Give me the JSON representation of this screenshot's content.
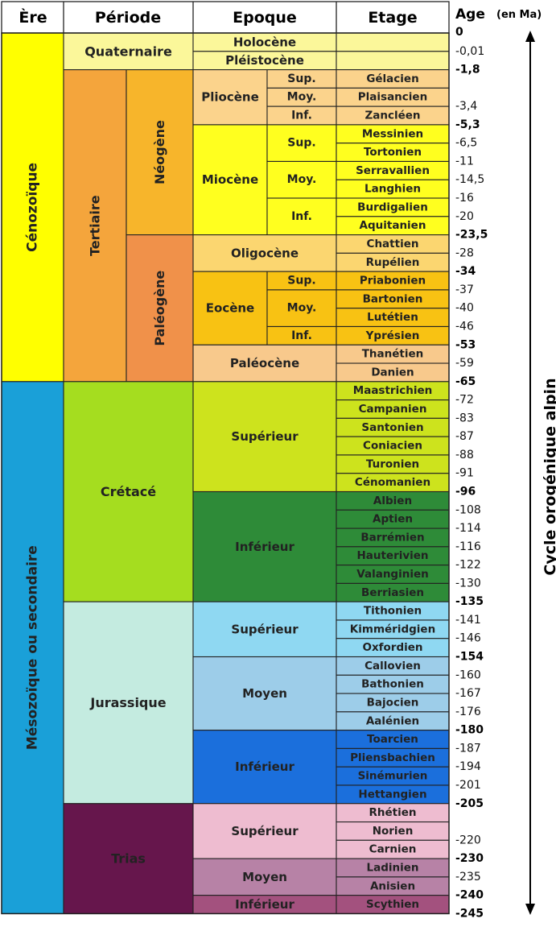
{
  "headers": {
    "ere": "Ère",
    "periode": "Période",
    "epoque": "Epoque",
    "etage": "Etage",
    "age": "Age",
    "age_unit": "(en Ma)"
  },
  "cycle_label": "Cycle orogénique alpin",
  "colors": {
    "cenozoique": "#ffff00",
    "mesozoique": "#1aa0d8",
    "tertiaire": "#f4a53c",
    "neogene": "#f7b52b",
    "paleogene": "#f0914a",
    "quaternaire": "#fbf79a",
    "cretace": "#a5dd1f",
    "jurassique": "#c4ebe0",
    "trias": "#66164c",
    "pliocene": "#fbd38c",
    "miocene": "#ffff1f",
    "oligocene": "#fbd670",
    "eocene": "#f8c213",
    "paleocene": "#f8c98c",
    "cret_sup": "#cde31d",
    "cret_inf": "#2e8b38",
    "jur_sup": "#8fd8f2",
    "jur_moyen": "#9dcde9",
    "jur_inf": "#1b6fdc",
    "trias_sup": "#eebcd0",
    "trias_moyen": "#b782a6",
    "trias_inf": "#a3517e"
  },
  "eres": [
    {
      "name": "Cénozoïque",
      "color_key": "cenozoique",
      "start": 0,
      "end": 19
    },
    {
      "name": "Mésozoïque ou secondaire",
      "color_key": "mesozoique",
      "start": 19,
      "end": 48
    }
  ],
  "periodes": [
    {
      "name": "Quaternaire",
      "color_key": "quaternaire",
      "start": 0,
      "end": 2
    },
    {
      "name": "Tertiaire",
      "color_key": "tertiaire",
      "start": 2,
      "end": 19,
      "vertical": true,
      "sub": [
        {
          "name": "Néogène",
          "color_key": "neogene",
          "start": 2,
          "end": 11
        },
        {
          "name": "Paléogène",
          "color_key": "paleogene",
          "start": 11,
          "end": 19
        }
      ]
    },
    {
      "name": "Crétacé",
      "color_key": "cretace",
      "start": 19,
      "end": 31
    },
    {
      "name": "Jurassique",
      "color_key": "jurassique",
      "start": 31,
      "end": 42
    },
    {
      "name": "Trias",
      "color_key": "trias",
      "start": 42,
      "end": 48
    }
  ],
  "epoques": [
    {
      "name": "Holocène",
      "color_key": "quaternaire",
      "start": 0,
      "end": 1,
      "full": true
    },
    {
      "name": "Pléistocène",
      "color_key": "quaternaire",
      "start": 1,
      "end": 2,
      "full": true
    },
    {
      "name": "Pliocène",
      "color_key": "pliocene",
      "start": 2,
      "end": 5,
      "subs": [
        {
          "name": "Sup.",
          "start": 2,
          "end": 3
        },
        {
          "name": "Moy.",
          "start": 3,
          "end": 4
        },
        {
          "name": "Inf.",
          "start": 4,
          "end": 5
        }
      ]
    },
    {
      "name": "Miocène",
      "color_key": "miocene",
      "start": 5,
      "end": 11,
      "subs": [
        {
          "name": "Sup.",
          "start": 5,
          "end": 7
        },
        {
          "name": "Moy.",
          "start": 7,
          "end": 9
        },
        {
          "name": "Inf.",
          "start": 9,
          "end": 11
        }
      ]
    },
    {
      "name": "Oligocène",
      "color_key": "oligocene",
      "start": 11,
      "end": 13
    },
    {
      "name": "Eocène",
      "color_key": "eocene",
      "start": 13,
      "end": 17,
      "subs": [
        {
          "name": "Sup.",
          "start": 13,
          "end": 14
        },
        {
          "name": "Moy.",
          "start": 14,
          "end": 16
        },
        {
          "name": "Inf.",
          "start": 16,
          "end": 17
        }
      ]
    },
    {
      "name": "Paléocène",
      "color_key": "paleocene",
      "start": 17,
      "end": 19
    },
    {
      "name": "Supérieur",
      "color_key": "cret_sup",
      "start": 19,
      "end": 25
    },
    {
      "name": "Inférieur",
      "color_key": "cret_inf",
      "start": 25,
      "end": 31
    },
    {
      "name": "Supérieur",
      "color_key": "jur_sup",
      "start": 31,
      "end": 34
    },
    {
      "name": "Moyen",
      "color_key": "jur_moyen",
      "start": 34,
      "end": 38
    },
    {
      "name": "Inférieur",
      "color_key": "jur_inf",
      "start": 38,
      "end": 42
    },
    {
      "name": "Supérieur",
      "color_key": "trias_sup",
      "start": 42,
      "end": 45
    },
    {
      "name": "Moyen",
      "color_key": "trias_moyen",
      "start": 45,
      "end": 47
    },
    {
      "name": "Inférieur",
      "color_key": "trias_inf",
      "start": 47,
      "end": 48
    }
  ],
  "etages": [
    {
      "name": "",
      "color_key": "quaternaire"
    },
    {
      "name": "",
      "color_key": "quaternaire"
    },
    {
      "name": "Gélacien",
      "color_key": "pliocene"
    },
    {
      "name": "Plaisancien",
      "color_key": "pliocene"
    },
    {
      "name": "Zancléen",
      "color_key": "pliocene"
    },
    {
      "name": "Messinien",
      "color_key": "miocene"
    },
    {
      "name": "Tortonien",
      "color_key": "miocene"
    },
    {
      "name": "Serravallien",
      "color_key": "miocene"
    },
    {
      "name": "Langhien",
      "color_key": "miocene"
    },
    {
      "name": "Burdigalien",
      "color_key": "miocene"
    },
    {
      "name": "Aquitanien",
      "color_key": "miocene"
    },
    {
      "name": "Chattien",
      "color_key": "oligocene"
    },
    {
      "name": "Rupélien",
      "color_key": "oligocene"
    },
    {
      "name": "Priabonien",
      "color_key": "eocene"
    },
    {
      "name": "Bartonien",
      "color_key": "eocene"
    },
    {
      "name": "Lutétien",
      "color_key": "eocene"
    },
    {
      "name": "Yprésien",
      "color_key": "eocene"
    },
    {
      "name": "Thanétien",
      "color_key": "paleocene"
    },
    {
      "name": "Danien",
      "color_key": "paleocene"
    },
    {
      "name": "Maastrichien",
      "color_key": "cret_sup"
    },
    {
      "name": "Campanien",
      "color_key": "cret_sup"
    },
    {
      "name": "Santonien",
      "color_key": "cret_sup"
    },
    {
      "name": "Coniacien",
      "color_key": "cret_sup"
    },
    {
      "name": "Turonien",
      "color_key": "cret_sup"
    },
    {
      "name": "Cénomanien",
      "color_key": "cret_sup"
    },
    {
      "name": "Albien",
      "color_key": "cret_inf"
    },
    {
      "name": "Aptien",
      "color_key": "cret_inf"
    },
    {
      "name": "Barrémien",
      "color_key": "cret_inf"
    },
    {
      "name": "Hauterivien",
      "color_key": "cret_inf"
    },
    {
      "name": "Valanginien",
      "color_key": "cret_inf"
    },
    {
      "name": "Berriasien",
      "color_key": "cret_inf"
    },
    {
      "name": "Tithonien",
      "color_key": "jur_sup"
    },
    {
      "name": "Kimméridgien",
      "color_key": "jur_sup"
    },
    {
      "name": "Oxfordien",
      "color_key": "jur_sup"
    },
    {
      "name": "Callovien",
      "color_key": "jur_moyen"
    },
    {
      "name": "Bathonien",
      "color_key": "jur_moyen"
    },
    {
      "name": "Bajocien",
      "color_key": "jur_moyen"
    },
    {
      "name": "Aalénien",
      "color_key": "jur_moyen"
    },
    {
      "name": "Toarcien",
      "color_key": "jur_inf"
    },
    {
      "name": "Pliensbachien",
      "color_key": "jur_inf"
    },
    {
      "name": "Sinémurien",
      "color_key": "jur_inf"
    },
    {
      "name": "Hettangien",
      "color_key": "jur_inf"
    },
    {
      "name": "Rhétien",
      "color_key": "trias_sup"
    },
    {
      "name": "Norien",
      "color_key": "trias_sup"
    },
    {
      "name": "Carnien",
      "color_key": "trias_sup"
    },
    {
      "name": "Ladinien",
      "color_key": "trias_moyen"
    },
    {
      "name": "Anisien",
      "color_key": "trias_moyen"
    },
    {
      "name": "Scythien",
      "color_key": "trias_inf"
    }
  ],
  "ages": [
    {
      "text": "0",
      "bold": true,
      "b": 0
    },
    {
      "text": "-0,01",
      "bold": false,
      "b": 1
    },
    {
      "text": "-1,8",
      "bold": true,
      "b": 2
    },
    {
      "text": "-3,4",
      "bold": false,
      "b": 4
    },
    {
      "text": "-5,3",
      "bold": true,
      "b": 5
    },
    {
      "text": "-6,5",
      "bold": false,
      "b": 6
    },
    {
      "text": "-11",
      "bold": false,
      "b": 7
    },
    {
      "text": "-14,5",
      "bold": false,
      "b": 8
    },
    {
      "text": "-16",
      "bold": false,
      "b": 9
    },
    {
      "text": "-20",
      "bold": false,
      "b": 10
    },
    {
      "text": "-23,5",
      "bold": true,
      "b": 11
    },
    {
      "text": "-28",
      "bold": false,
      "b": 12
    },
    {
      "text": "-34",
      "bold": true,
      "b": 13
    },
    {
      "text": "-37",
      "bold": false,
      "b": 14
    },
    {
      "text": "-40",
      "bold": false,
      "b": 15
    },
    {
      "text": "-46",
      "bold": false,
      "b": 16
    },
    {
      "text": "-53",
      "bold": true,
      "b": 17
    },
    {
      "text": "-59",
      "bold": false,
      "b": 18
    },
    {
      "text": "-65",
      "bold": true,
      "b": 19
    },
    {
      "text": "-72",
      "bold": false,
      "b": 20
    },
    {
      "text": "-83",
      "bold": false,
      "b": 21
    },
    {
      "text": "-87",
      "bold": false,
      "b": 22
    },
    {
      "text": "-88",
      "bold": false,
      "b": 23
    },
    {
      "text": "-91",
      "bold": false,
      "b": 24
    },
    {
      "text": "-96",
      "bold": true,
      "b": 25
    },
    {
      "text": "-108",
      "bold": false,
      "b": 26
    },
    {
      "text": "-114",
      "bold": false,
      "b": 27
    },
    {
      "text": "-116",
      "bold": false,
      "b": 28
    },
    {
      "text": "-122",
      "bold": false,
      "b": 29
    },
    {
      "text": "-130",
      "bold": false,
      "b": 30
    },
    {
      "text": "-135",
      "bold": true,
      "b": 31
    },
    {
      "text": "-141",
      "bold": false,
      "b": 32
    },
    {
      "text": "-146",
      "bold": false,
      "b": 33
    },
    {
      "text": "-154",
      "bold": true,
      "b": 34
    },
    {
      "text": "-160",
      "bold": false,
      "b": 35
    },
    {
      "text": "-167",
      "bold": false,
      "b": 36
    },
    {
      "text": "-176",
      "bold": false,
      "b": 37
    },
    {
      "text": "-180",
      "bold": true,
      "b": 38
    },
    {
      "text": "-187",
      "bold": false,
      "b": 39
    },
    {
      "text": "-194",
      "bold": false,
      "b": 40
    },
    {
      "text": "-201",
      "bold": false,
      "b": 41
    },
    {
      "text": "-205",
      "bold": true,
      "b": 42
    },
    {
      "text": "-220",
      "bold": false,
      "b": 44
    },
    {
      "text": "-230",
      "bold": true,
      "b": 45
    },
    {
      "text": "-235",
      "bold": false,
      "b": 46
    },
    {
      "text": "-240",
      "bold": true,
      "b": 47
    },
    {
      "text": "-245",
      "bold": true,
      "b": 48
    }
  ]
}
